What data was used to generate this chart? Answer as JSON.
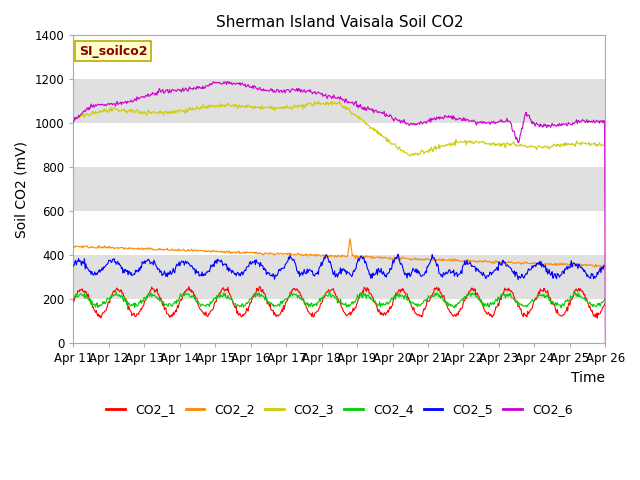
{
  "title": "Sherman Island Vaisala Soil CO2",
  "ylabel": "Soil CO2 (mV)",
  "xlabel": "Time",
  "legend_label": "SI_soilco2",
  "ylim": [
    0,
    1400
  ],
  "yticks": [
    0,
    200,
    400,
    600,
    800,
    1000,
    1200,
    1400
  ],
  "xtick_labels": [
    "Apr 11",
    "Apr 12",
    "Apr 13",
    "Apr 14",
    "Apr 15",
    "Apr 16",
    "Apr 17",
    "Apr 18",
    "Apr 19",
    "Apr 20",
    "Apr 21",
    "Apr 22",
    "Apr 23",
    "Apr 24",
    "Apr 25",
    "Apr 26"
  ],
  "colors": {
    "CO2_1": "#ff0000",
    "CO2_2": "#ff8800",
    "CO2_3": "#cccc00",
    "CO2_4": "#00cc00",
    "CO2_5": "#0000ff",
    "CO2_6": "#cc00cc"
  },
  "background_color": "#ffffff",
  "plot_bg_color": "#ffffff",
  "gray_band_color": "#e0e0e0",
  "title_fontsize": 11,
  "label_fontsize": 10,
  "tick_fontsize": 8.5
}
